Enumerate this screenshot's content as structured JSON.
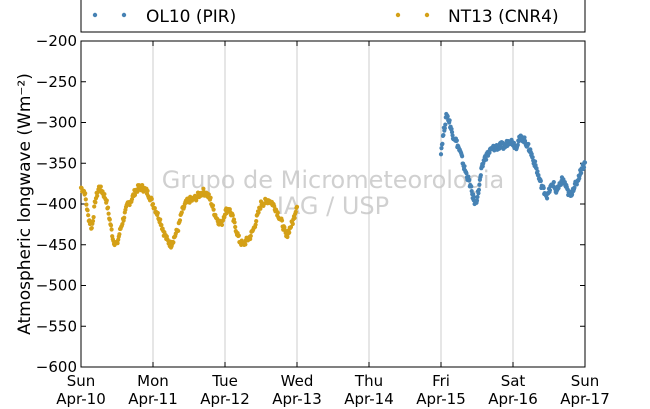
{
  "chart_data": {
    "type": "scatter",
    "ylabel": "Atmospheric longwave (Wm⁻²)",
    "ylim": [
      -600,
      -200
    ],
    "yticks": [
      -600,
      -550,
      -500,
      -450,
      -400,
      -350,
      -300,
      -250,
      -200
    ],
    "xlim": [
      "2016-04-10",
      "2016-04-17"
    ],
    "xtick_labels": [
      {
        "day": "Sun",
        "date": "Apr-10"
      },
      {
        "day": "Mon",
        "date": "Apr-11"
      },
      {
        "day": "Tue",
        "date": "Apr-12"
      },
      {
        "day": "Wed",
        "date": "Apr-13"
      },
      {
        "day": "Thu",
        "date": "Apr-14"
      },
      {
        "day": "Fri",
        "date": "Apr-15"
      },
      {
        "day": "Sat",
        "date": "Apr-16"
      },
      {
        "day": "Sun",
        "date": "Apr-17"
      }
    ],
    "grid": "vertical",
    "legend_position": "top",
    "watermark": [
      "Grupo de Micrometeorologia",
      "IAG / USP"
    ],
    "series": [
      {
        "name": "NT13 (CNR4)",
        "color": "#d4a017",
        "x_days_from_start": [
          0.0,
          0.05,
          0.1,
          0.15,
          0.2,
          0.25,
          0.3,
          0.35,
          0.4,
          0.45,
          0.5,
          0.55,
          0.6,
          0.65,
          0.7,
          0.75,
          0.8,
          0.85,
          0.9,
          0.95,
          1.0,
          1.05,
          1.1,
          1.15,
          1.2,
          1.25,
          1.3,
          1.35,
          1.4,
          1.45,
          1.5,
          1.55,
          1.6,
          1.65,
          1.7,
          1.75,
          1.8,
          1.85,
          1.9,
          1.95,
          2.0,
          2.05,
          2.1,
          2.15,
          2.2,
          2.25,
          2.3,
          2.35,
          2.4,
          2.45,
          2.5,
          2.55,
          2.6,
          2.65,
          2.7,
          2.75,
          2.8,
          2.85,
          2.9,
          2.95,
          3.0
        ],
        "values": [
          -380,
          -385,
          -415,
          -430,
          -395,
          -380,
          -385,
          -395,
          -420,
          -445,
          -450,
          -430,
          -415,
          -400,
          -395,
          -385,
          -380,
          -380,
          -383,
          -390,
          -400,
          -410,
          -420,
          -435,
          -445,
          -450,
          -440,
          -430,
          -410,
          -400,
          -395,
          -395,
          -392,
          -388,
          -385,
          -388,
          -395,
          -410,
          -420,
          -425,
          -410,
          -405,
          -415,
          -430,
          -445,
          -450,
          -445,
          -440,
          -430,
          -415,
          -400,
          -398,
          -395,
          -398,
          -405,
          -415,
          -425,
          -440,
          -430,
          -420,
          -400
        ]
      },
      {
        "name": "OL10 (PIR)",
        "color": "#4682b4",
        "x_days_from_start": [
          5.0,
          5.04,
          5.08,
          5.12,
          5.16,
          5.2,
          5.24,
          5.28,
          5.32,
          5.36,
          5.4,
          5.44,
          5.48,
          5.52,
          5.56,
          5.6,
          5.64,
          5.68,
          5.72,
          5.76,
          5.8,
          5.84,
          5.88,
          5.92,
          5.96,
          6.0,
          6.04,
          6.08,
          6.12,
          6.16,
          6.2,
          6.24,
          6.28,
          6.32,
          6.36,
          6.4,
          6.44,
          6.48,
          6.52,
          6.56,
          6.6,
          6.64,
          6.68,
          6.72,
          6.76,
          6.8,
          6.84,
          6.88,
          6.92,
          6.96,
          7.0
        ],
        "values": [
          -335,
          -310,
          -290,
          -300,
          -315,
          -320,
          -330,
          -340,
          -355,
          -365,
          -375,
          -390,
          -400,
          -385,
          -360,
          -345,
          -340,
          -335,
          -332,
          -330,
          -330,
          -328,
          -330,
          -325,
          -322,
          -325,
          -330,
          -322,
          -318,
          -322,
          -328,
          -335,
          -345,
          -355,
          -368,
          -378,
          -385,
          -390,
          -380,
          -375,
          -385,
          -380,
          -370,
          -375,
          -385,
          -390,
          -380,
          -375,
          -365,
          -355,
          -350
        ]
      }
    ]
  }
}
